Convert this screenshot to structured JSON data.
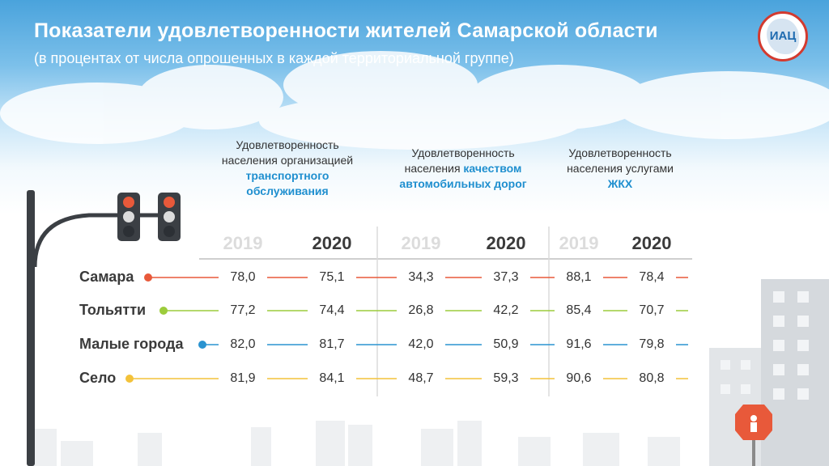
{
  "header": {
    "title": "Показатели удовлетворенности жителей Самарской области",
    "subtitle": "(в процентах от числа опрошенных в каждой территориальной группе)",
    "logo_text": "ИАЦ"
  },
  "groups": [
    {
      "line1": "Удовлетворенность",
      "line2": "населения организацией",
      "line3": "транспортного",
      "line4": "обслуживания"
    },
    {
      "line1": "Удовлетворенность",
      "line2a": "населения ",
      "line2b": "качеством",
      "line3": "автомобильных дорог"
    },
    {
      "line1": "Удовлетворенность",
      "line2": "населения услугами",
      "line3": "ЖКХ"
    }
  ],
  "colors": {
    "Самара": "#e8593a",
    "Тольятти": "#9ccc3b",
    "Малые города": "#2a93d0",
    "Село": "#f3c23a"
  },
  "icons": [
    "traffic-light-icon",
    "road-sign-icon",
    "logo-icon"
  ],
  "chart_data": {
    "type": "table",
    "years": [
      "2019",
      "2020"
    ],
    "columns": [
      "Удовлетворенность населения организацией транспортного обслуживания",
      "Удовлетворенность населения качеством автомобильных дорог",
      "Удовлетворенность населения услугами ЖКХ"
    ],
    "rows": [
      {
        "name": "Самара",
        "values": [
          "78,0",
          "75,1",
          "34,3",
          "37,3",
          "88,1",
          "78,4"
        ]
      },
      {
        "name": "Тольятти",
        "values": [
          "77,2",
          "74,4",
          "26,8",
          "42,2",
          "85,4",
          "70,7"
        ]
      },
      {
        "name": "Малые города",
        "values": [
          "82,0",
          "81,7",
          "42,0",
          "50,9",
          "91,6",
          "79,8"
        ]
      },
      {
        "name": "Село",
        "values": [
          "81,9",
          "84,1",
          "48,7",
          "59,3",
          "90,6",
          "80,8"
        ]
      }
    ]
  }
}
